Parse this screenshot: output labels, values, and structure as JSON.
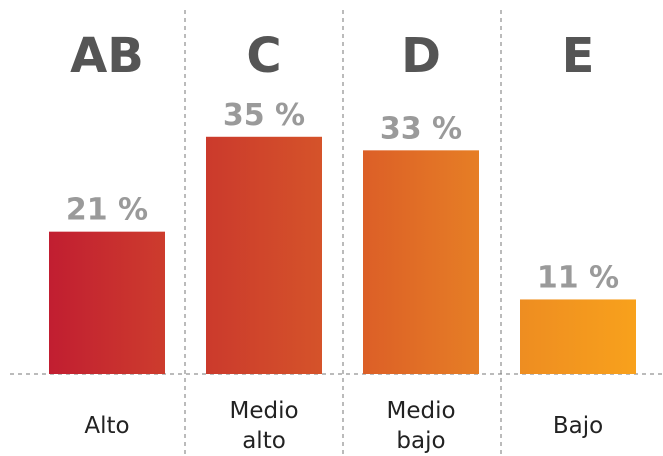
{
  "chart_data": {
    "type": "bar",
    "groups": [
      "AB",
      "C",
      "D",
      "E"
    ],
    "categories": [
      "Alto",
      "Medio alto",
      "Medio bajo",
      "Bajo"
    ],
    "values": [
      21,
      35,
      33,
      11
    ],
    "value_labels": [
      "21 %",
      "35 %",
      "33 %",
      "11 %"
    ],
    "colors": [
      [
        "#c11e31",
        "#cd3c2d"
      ],
      [
        "#cb3a2c",
        "#d5532a"
      ],
      [
        "#dc5f27",
        "#e67e25"
      ],
      [
        "#ee8d21",
        "#f8a11c"
      ]
    ],
    "ylim": [
      0,
      36
    ]
  }
}
